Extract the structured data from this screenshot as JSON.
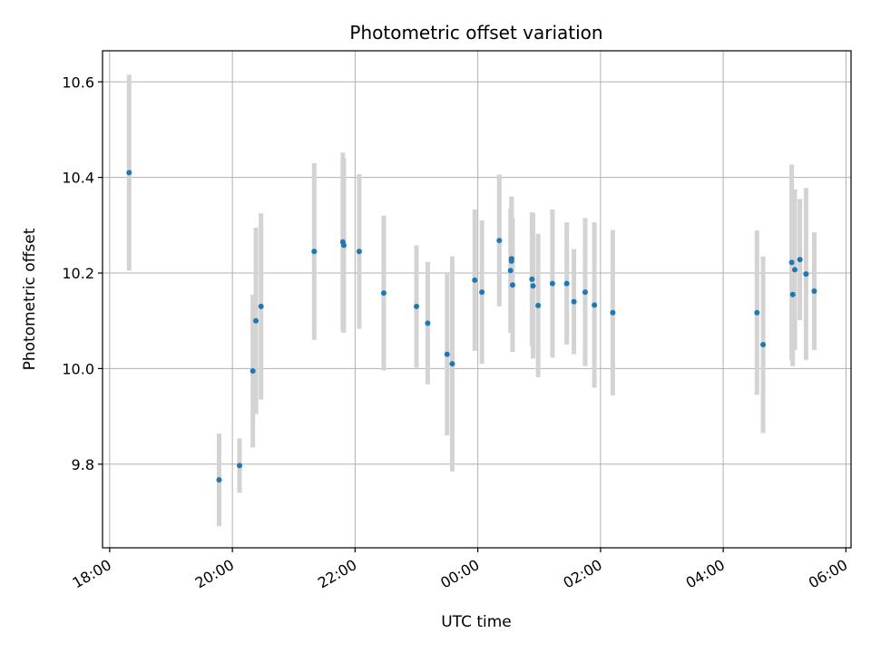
{
  "chart_data": {
    "type": "scatter",
    "title": "Photometric offset variation",
    "xlabel": "UTC time",
    "ylabel": "Photometric offset",
    "x_axis": "time",
    "xlim": [
      "17:53",
      "06:05"
    ],
    "ylim": [
      9.625,
      10.665
    ],
    "x_ticks": [
      "18:00",
      "20:00",
      "22:00",
      "00:00",
      "02:00",
      "04:00",
      "06:00"
    ],
    "y_ticks": [
      9.8,
      10.0,
      10.2,
      10.4,
      10.6
    ],
    "y_tick_labels": [
      "9.8",
      "10.0",
      "10.2",
      "10.4",
      "10.6"
    ],
    "grid": true,
    "colors": {
      "point": "#1f77b4",
      "errorbar": "#d3d3d3",
      "grid": "#b0b0b0"
    },
    "series": [
      {
        "points": [
          {
            "t": "18:19",
            "y": 10.41,
            "err": 0.205
          },
          {
            "t": "19:47",
            "y": 9.767,
            "err": 0.097
          },
          {
            "t": "20:07",
            "y": 9.797,
            "err": 0.057
          },
          {
            "t": "20:20",
            "y": 9.995,
            "err": 0.16
          },
          {
            "t": "20:23",
            "y": 10.1,
            "err": 0.195
          },
          {
            "t": "20:28",
            "y": 10.13,
            "err": 0.195
          },
          {
            "t": "21:20",
            "y": 10.245,
            "err": 0.185
          },
          {
            "t": "21:48",
            "y": 10.265,
            "err": 0.187
          },
          {
            "t": "21:49",
            "y": 10.258,
            "err": 0.183
          },
          {
            "t": "22:04",
            "y": 10.245,
            "err": 0.162
          },
          {
            "t": "22:28",
            "y": 10.158,
            "err": 0.162
          },
          {
            "t": "23:00",
            "y": 10.13,
            "err": 0.128
          },
          {
            "t": "23:11",
            "y": 10.095,
            "err": 0.128
          },
          {
            "t": "23:30",
            "y": 10.03,
            "err": 0.17
          },
          {
            "t": "23:35",
            "y": 10.01,
            "err": 0.225
          },
          {
            "t": "23:57",
            "y": 10.185,
            "err": 0.148
          },
          {
            "t": "00:04",
            "y": 10.16,
            "err": 0.15
          },
          {
            "t": "00:21",
            "y": 10.268,
            "err": 0.138
          },
          {
            "t": "00:32",
            "y": 10.205,
            "err": 0.13
          },
          {
            "t": "00:33",
            "y": 10.23,
            "err": 0.13
          },
          {
            "t": "00:33",
            "y": 10.225,
            "err": 0.135
          },
          {
            "t": "00:34",
            "y": 10.175,
            "err": 0.14
          },
          {
            "t": "00:53",
            "y": 10.187,
            "err": 0.14
          },
          {
            "t": "00:54",
            "y": 10.173,
            "err": 0.152
          },
          {
            "t": "00:59",
            "y": 10.132,
            "err": 0.15
          },
          {
            "t": "01:13",
            "y": 10.178,
            "err": 0.155
          },
          {
            "t": "01:27",
            "y": 10.178,
            "err": 0.128
          },
          {
            "t": "01:34",
            "y": 10.14,
            "err": 0.11
          },
          {
            "t": "01:45",
            "y": 10.16,
            "err": 0.155
          },
          {
            "t": "01:54",
            "y": 10.133,
            "err": 0.173
          },
          {
            "t": "02:12",
            "y": 10.117,
            "err": 0.173
          },
          {
            "t": "04:33",
            "y": 10.117,
            "err": 0.172
          },
          {
            "t": "04:39",
            "y": 10.05,
            "err": 0.185
          },
          {
            "t": "05:07",
            "y": 10.222,
            "err": 0.205
          },
          {
            "t": "05:08",
            "y": 10.155,
            "err": 0.15
          },
          {
            "t": "05:10",
            "y": 10.207,
            "err": 0.168
          },
          {
            "t": "05:15",
            "y": 10.228,
            "err": 0.127
          },
          {
            "t": "05:21",
            "y": 10.198,
            "err": 0.18
          },
          {
            "t": "05:29",
            "y": 10.162,
            "err": 0.123
          }
        ]
      }
    ]
  }
}
